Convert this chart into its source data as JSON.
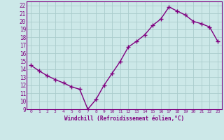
{
  "x": [
    0,
    1,
    2,
    3,
    4,
    5,
    6,
    7,
    8,
    9,
    10,
    11,
    12,
    13,
    14,
    15,
    16,
    17,
    18,
    19,
    20,
    21,
    22,
    23
  ],
  "y": [
    14.5,
    13.8,
    13.2,
    12.7,
    12.3,
    11.8,
    11.5,
    9.0,
    10.2,
    12.0,
    13.5,
    15.0,
    16.8,
    17.5,
    18.3,
    19.5,
    20.3,
    21.8,
    21.3,
    20.8,
    20.0,
    19.7,
    19.3,
    17.5
  ],
  "color": "#800080",
  "marker": "+",
  "markersize": 4,
  "linewidth": 1.0,
  "xlabel": "Windchill (Refroidissement éolien,°C)",
  "xlim": [
    -0.5,
    23.5
  ],
  "ylim": [
    9,
    22.5
  ],
  "yticks": [
    9,
    10,
    11,
    12,
    13,
    14,
    15,
    16,
    17,
    18,
    19,
    20,
    21,
    22
  ],
  "xticks": [
    0,
    1,
    2,
    3,
    4,
    5,
    6,
    7,
    8,
    9,
    10,
    11,
    12,
    13,
    14,
    15,
    16,
    17,
    18,
    19,
    20,
    21,
    22,
    23
  ],
  "bg_color": "#cce8e8",
  "grid_color": "#aacccc",
  "axis_label_color": "#800080",
  "tick_color": "#800080",
  "spine_color": "#800080"
}
